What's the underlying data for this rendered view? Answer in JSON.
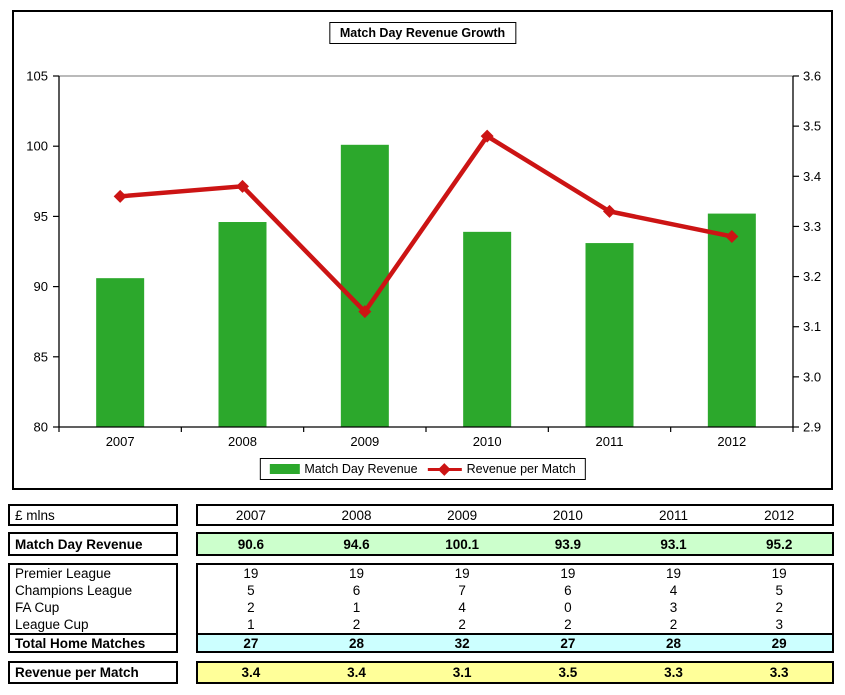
{
  "chart_data": {
    "type": "bar",
    "title": "Match Day Revenue Growth",
    "categories": [
      "2007",
      "2008",
      "2009",
      "2010",
      "2011",
      "2012"
    ],
    "series": [
      {
        "name": "Match Day Revenue",
        "type": "bar",
        "axis": "left",
        "values": [
          90.6,
          94.6,
          100.1,
          93.9,
          93.1,
          95.2
        ]
      },
      {
        "name": "Revenue per Match",
        "type": "line",
        "axis": "right",
        "values": [
          3.36,
          3.38,
          3.13,
          3.48,
          3.33,
          3.28
        ]
      }
    ],
    "left_axis": {
      "min": 80,
      "max": 105,
      "ticks": [
        "105",
        "100",
        "95",
        "90",
        "85",
        "80"
      ]
    },
    "right_axis": {
      "min": 2.9,
      "max": 3.6,
      "ticks": [
        "3.6",
        "3.5",
        "3.4",
        "3.3",
        "3.2",
        "3.1",
        "3.0",
        "2.9"
      ]
    },
    "legend_position": "bottom",
    "grid": "off"
  },
  "colors": {
    "bar_green": "#2CA82C",
    "line_red": "#CC1414",
    "axis_black": "#000000",
    "plot_top_gray": "#909090",
    "row_green": "#CCFFCC",
    "row_cyan": "#CCFFFF",
    "row_yellow": "#FFFF99"
  },
  "table": {
    "unit_label": "£ mlns",
    "years": [
      "2007",
      "2008",
      "2009",
      "2010",
      "2011",
      "2012"
    ],
    "revenue_row": {
      "label": "Match Day Revenue",
      "values": [
        "90.6",
        "94.6",
        "100.1",
        "93.9",
        "93.1",
        "95.2"
      ]
    },
    "match_rows": [
      {
        "label": "Premier League",
        "values": [
          "19",
          "19",
          "19",
          "19",
          "19",
          "19"
        ]
      },
      {
        "label": "Champions League",
        "values": [
          "5",
          "6",
          "7",
          "6",
          "4",
          "5"
        ]
      },
      {
        "label": "FA Cup",
        "values": [
          "2",
          "1",
          "4",
          "0",
          "3",
          "2"
        ]
      },
      {
        "label": "League Cup",
        "values": [
          "1",
          "2",
          "2",
          "2",
          "2",
          "3"
        ]
      }
    ],
    "total_row": {
      "label": "Total Home Matches",
      "values": [
        "27",
        "28",
        "32",
        "27",
        "28",
        "29"
      ]
    },
    "per_match_row": {
      "label": "Revenue per Match",
      "values": [
        "3.4",
        "3.4",
        "3.1",
        "3.5",
        "3.3",
        "3.3"
      ]
    }
  }
}
